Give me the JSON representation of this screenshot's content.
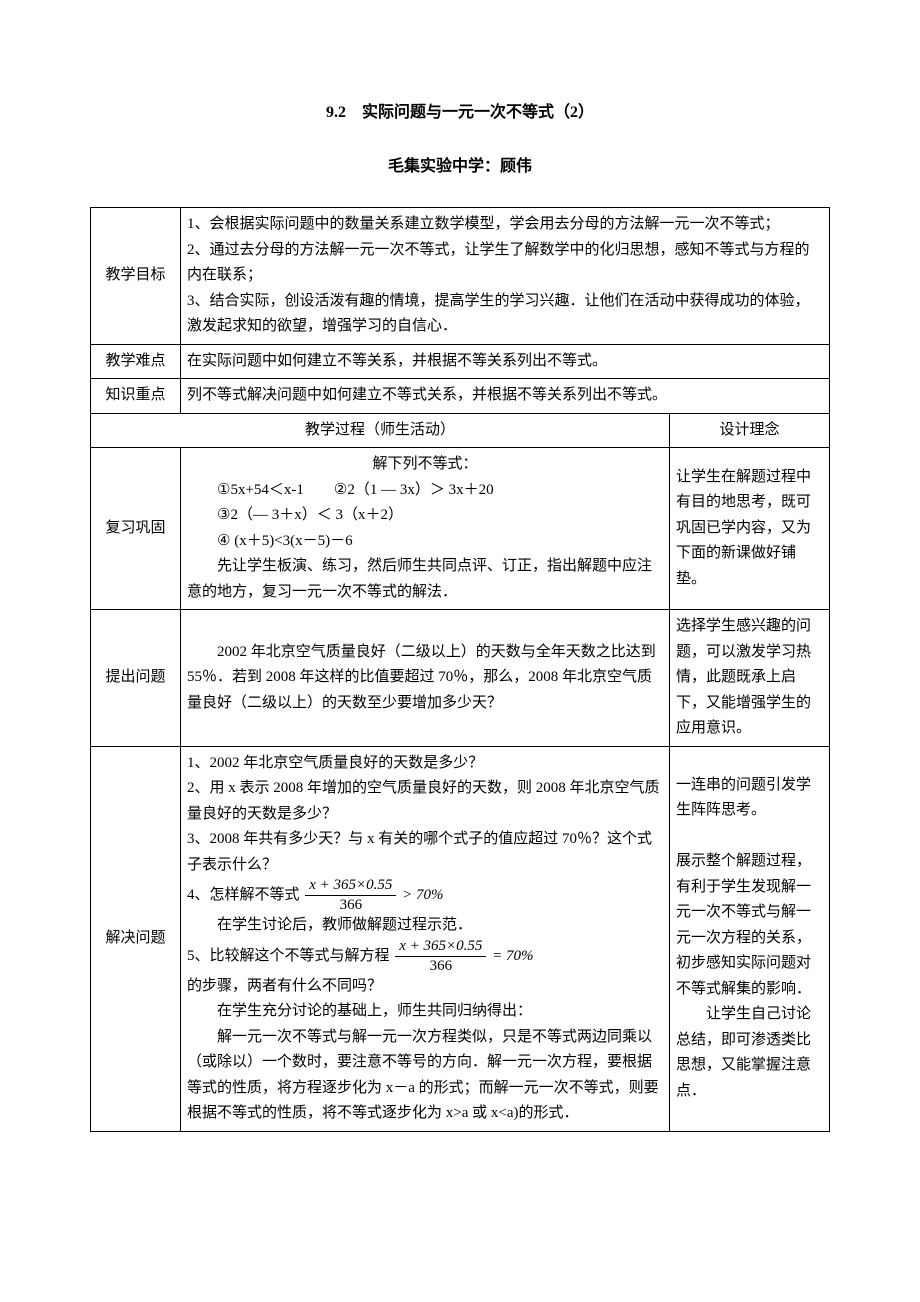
{
  "title": "9.2　实际问题与一元一次不等式（2）",
  "subtitle": "毛集实验中学：顾伟",
  "rows": {
    "goal": {
      "label": "教学目标",
      "content": "1、会根据实际问题中的数量关系建立数学模型，学会用去分母的方法解一元一次不等式；\n2、通过去分母的方法解一元一次不等式，让学生了解数学中的化归思想，感知不等式与方程的内在联系；\n3、结合实际，创设活泼有趣的情境，提高学生的学习兴趣．让他们在活动中获得成功的体验，激发起求知的欲望，增强学习的自信心．"
    },
    "difficulty": {
      "label": "教学难点",
      "content": "在实际问题中如何建立不等关系，并根据不等关系列出不等式。"
    },
    "key": {
      "label": "知识重点",
      "content": "列不等式解决问题中如何建立不等式关系，并根据不等关系列出不等式。"
    },
    "procHeader": {
      "left": "教学过程（师生活动）",
      "right": "设计理念"
    },
    "review": {
      "label": "复习巩固",
      "mid_heading": "解下列不等式：",
      "mid_l1": "①5x+54＜x-1　　②2（1 — 3x）＞ 3x＋20",
      "mid_l2": "③2（— 3＋x）＜ 3（x＋2）",
      "mid_l3": "④ (x＋5)<3(x－5)－6",
      "mid_note": "　　先让学生板演、练习，然后师生共同点评、订正，指出解题中应注意的地方，复习一元一次不等式的解法．",
      "right": "让学生在解题过程中有目的地思考，既可巩固已学内容，又为下面的新课做好铺垫。"
    },
    "pose": {
      "label": "提出问题",
      "mid": "　　2002 年北京空气质量良好（二级以上）的天数与全年天数之比达到 55％．若到 2008 年这样的比值要超过 70％，那么，2008 年北京空气质量良好（二级以上）的天数至少要增加多少天？",
      "right": "选择学生感兴趣的问题，可以激发学习热情，此题既承上启下，又能增强学生的应用意识。"
    },
    "solve": {
      "label": "解决问题",
      "mid_1": "1、2002 年北京空气质量良好的天数是多少？",
      "mid_2": "2、用 x 表示 2008 年增加的空气质量良好的天数，则 2008 年北京空气质量良好的天数是多少？",
      "mid_3": "3、2008 年共有多少天？与 x 有关的哪个式子的值应超过 70％？这个式子表示什么？",
      "mid_4_pre": "4、怎样解不等式",
      "mid_4_post": " > 70%",
      "mid_4_note": "　　在学生讨论后，教师做解题过程示范．",
      "mid_5_pre": "5、比较解这个不等式与解方程",
      "mid_5_post": " = 70%",
      "mid_5_q": "的步骤，两者有什么不同吗？",
      "mid_5_note1": "　　在学生充分讨论的基础上，师生共同归纳得出：",
      "mid_5_note2": "　　解一元一次不等式与解一元一次方程类似，只是不等式两边同乘以（或除以）一个数时，要注意不等号的方向．解一元一次方程，要根据等式的性质，将方程逐步化为 x－a 的形式；而解一元一次不等式，则要根据不等式的性质，将不等式逐步化为 x>a 或 x<a)的形式．",
      "frac_num": "x + 365×0.55",
      "frac_den": "366",
      "right": "一连串的问题引发学生阵阵思考。\n\n展示整个解题过程，有利于学生发现解一元一次不等式与解一元一次方程的关系，初步感知实际问题对不等式解集的影响．\n　　让学生自己讨论总结，即可渗透类比思想，又能掌握注意点．"
    }
  }
}
